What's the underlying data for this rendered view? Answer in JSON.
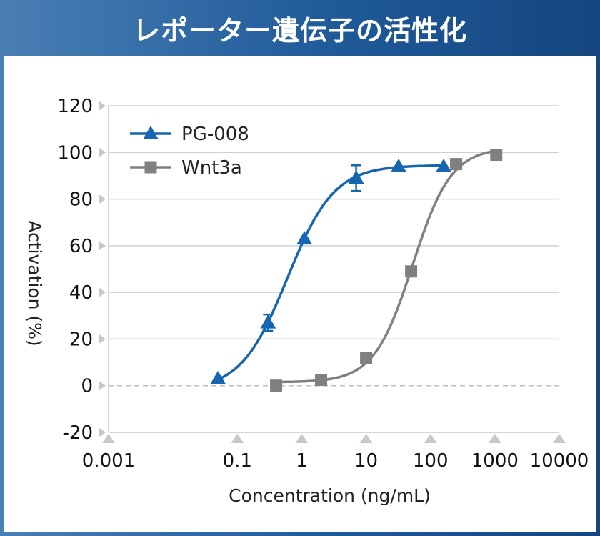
{
  "header": {
    "title": "レポーター遺伝子の活性化"
  },
  "colors": {
    "pg008": "#1565b0",
    "wnt3a": "#808080",
    "grid": "#d0d0d0",
    "header": "#1f5a99"
  },
  "chart_data": {
    "type": "scatter",
    "title": "レポーター遺伝子の活性化",
    "xlabel": "Concentration (ng/mL)",
    "ylabel": "Activation (%)",
    "xscale": "log",
    "xlim": [
      0.001,
      10000
    ],
    "ylim": [
      -20,
      120
    ],
    "x_ticks": [
      0.001,
      0.1,
      1,
      10,
      100,
      1000,
      10000
    ],
    "x_tick_labels": [
      "0.001",
      "0.1",
      "1",
      "10",
      "100",
      "1000",
      "10000"
    ],
    "y_ticks": [
      -20,
      0,
      20,
      40,
      60,
      80,
      100,
      120
    ],
    "y_tick_labels": [
      "-20",
      "0",
      "20",
      "40",
      "60",
      "80",
      "100",
      "120"
    ],
    "grid": true,
    "legend": "top-left",
    "series": [
      {
        "name": "PG-008",
        "marker": "triangle",
        "color": "#1565b0",
        "x": [
          0.05,
          0.3,
          1.1,
          7,
          32,
          160
        ],
        "y": [
          3,
          27,
          63,
          89,
          94,
          94
        ],
        "error": [
          0,
          3.5,
          0,
          5.5,
          0,
          0
        ]
      },
      {
        "name": "Wnt3a",
        "marker": "square",
        "color": "#808080",
        "x": [
          0.4,
          2,
          10,
          50,
          250,
          1050
        ],
        "y": [
          0,
          2.5,
          12,
          49,
          95,
          99
        ]
      }
    ]
  }
}
